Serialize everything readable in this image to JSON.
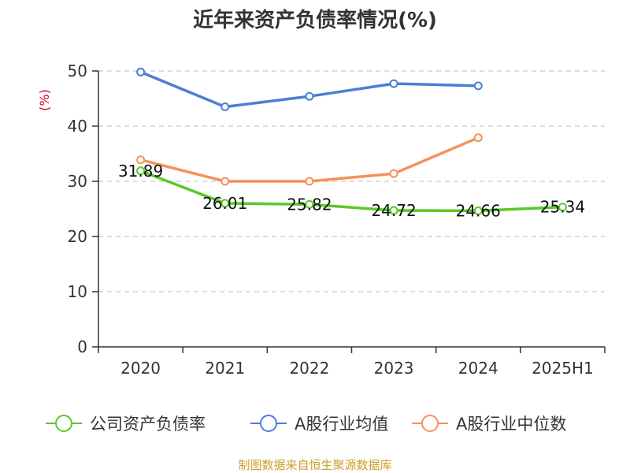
{
  "chart_data": {
    "type": "line",
    "title": "近年来资产负债率情况(%)",
    "ylabel": "(%)",
    "categories": [
      "2020",
      "2021",
      "2022",
      "2023",
      "2024",
      "2025H1"
    ],
    "ylim": [
      0,
      50
    ],
    "yticks": [
      0,
      10,
      20,
      30,
      40,
      50
    ],
    "grid": true,
    "legend_position": "bottom",
    "series": [
      {
        "name": "公司资产负债率",
        "color": "#5ac926",
        "values": [
          31.89,
          26.01,
          25.82,
          24.72,
          24.66,
          25.34
        ],
        "labels_shown": true
      },
      {
        "name": "A股行业均值",
        "color": "#4a7fd6",
        "values": [
          49.8,
          43.5,
          45.4,
          47.7,
          47.3,
          null
        ],
        "labels_shown": false
      },
      {
        "name": "A股行业中位数",
        "color": "#f5915a",
        "values": [
          33.9,
          30.0,
          30.0,
          31.4,
          37.9,
          null
        ],
        "labels_shown": false
      }
    ]
  },
  "source": "制图数据来自恒生聚源数据库"
}
